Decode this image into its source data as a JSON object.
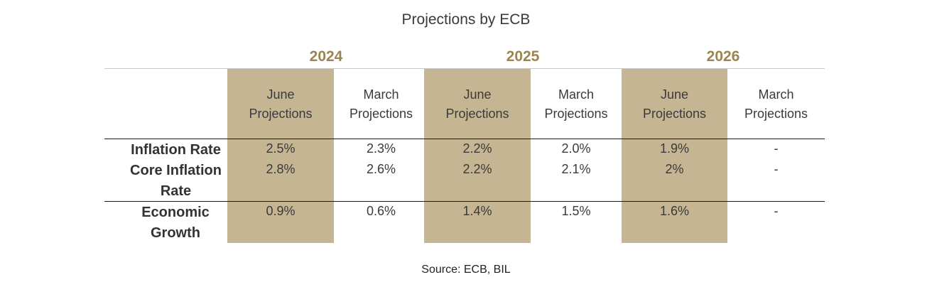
{
  "chart_data": {
    "type": "table",
    "title": "Projections by ECB",
    "years": [
      "2024",
      "2025",
      "2026"
    ],
    "column_headers": [
      "June\nProjections",
      "March\nProjections",
      "June\nProjections",
      "March\nProjections",
      "June\nProjections",
      "March\nProjections"
    ],
    "rows": [
      {
        "label": "Inflation Rate",
        "values": [
          "2.5%",
          "2.3%",
          "2.2%",
          "2.0%",
          "1.9%",
          "-"
        ]
      },
      {
        "label": "Core Inflation Rate",
        "values": [
          "2.8%",
          "2.6%",
          "2.2%",
          "2.1%",
          "2%",
          "-"
        ]
      },
      {
        "label": "Economic Growth",
        "values": [
          "0.9%",
          "0.6%",
          "1.4%",
          "1.5%",
          "1.6%",
          "-"
        ]
      }
    ],
    "source": "Source: ECB, BIL",
    "colors": {
      "accent_text": "#9b8450",
      "highlight": "#c5b593"
    }
  }
}
